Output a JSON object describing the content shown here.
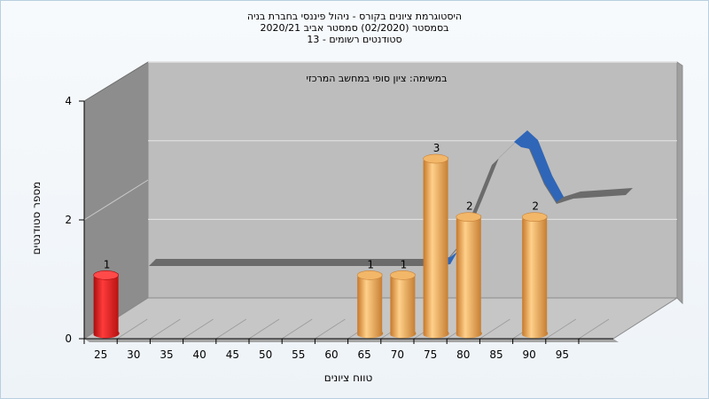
{
  "chart_data": {
    "type": "bar",
    "title_lines": [
      "היסטוגרמת ציונים בקורס - ניהול פיננסי בחברת בניה",
      "בסמסטר (02/2020) סמסטר אביב 2020/21",
      "סטודנטים רשומים - 13"
    ],
    "subtitle": "במשימה: ציון סופי במחשב המרכזי",
    "xlabel": "טווח ציונים",
    "ylabel": "מספר סטודנטים",
    "categories": [
      "25",
      "30",
      "35",
      "40",
      "45",
      "50",
      "55",
      "60",
      "65",
      "70",
      "75",
      "80",
      "85",
      "90",
      "95"
    ],
    "values": [
      1,
      0,
      0,
      0,
      0,
      0,
      0,
      0,
      1,
      1,
      3,
      2,
      0,
      2,
      0
    ],
    "data_labels": [
      "1",
      "",
      "",
      "",
      "",
      "",
      "",
      "",
      "1",
      "1",
      "3",
      "2",
      "",
      "2",
      ""
    ],
    "ylim": [
      0,
      4
    ],
    "yticks": [
      "0",
      "2",
      "4"
    ],
    "bar_colors": {
      "fail": "#e32020",
      "pass": "#e8a84a"
    },
    "line_color": "#2f66b8",
    "grid": true
  }
}
